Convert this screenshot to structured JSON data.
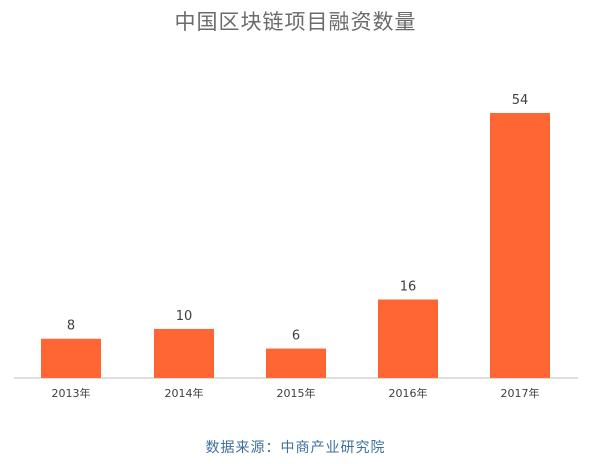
{
  "chart_data": {
    "type": "bar",
    "title": "中国区块链项目融资数量",
    "categories": [
      "2013年",
      "2014年",
      "2015年",
      "2016年",
      "2017年"
    ],
    "values": [
      8,
      10,
      6,
      16,
      54
    ],
    "ylim": [
      0,
      54
    ],
    "grid": false,
    "legend": "none",
    "bar_color": "#ff6633",
    "source": "数据来源：中商产业研究院"
  }
}
